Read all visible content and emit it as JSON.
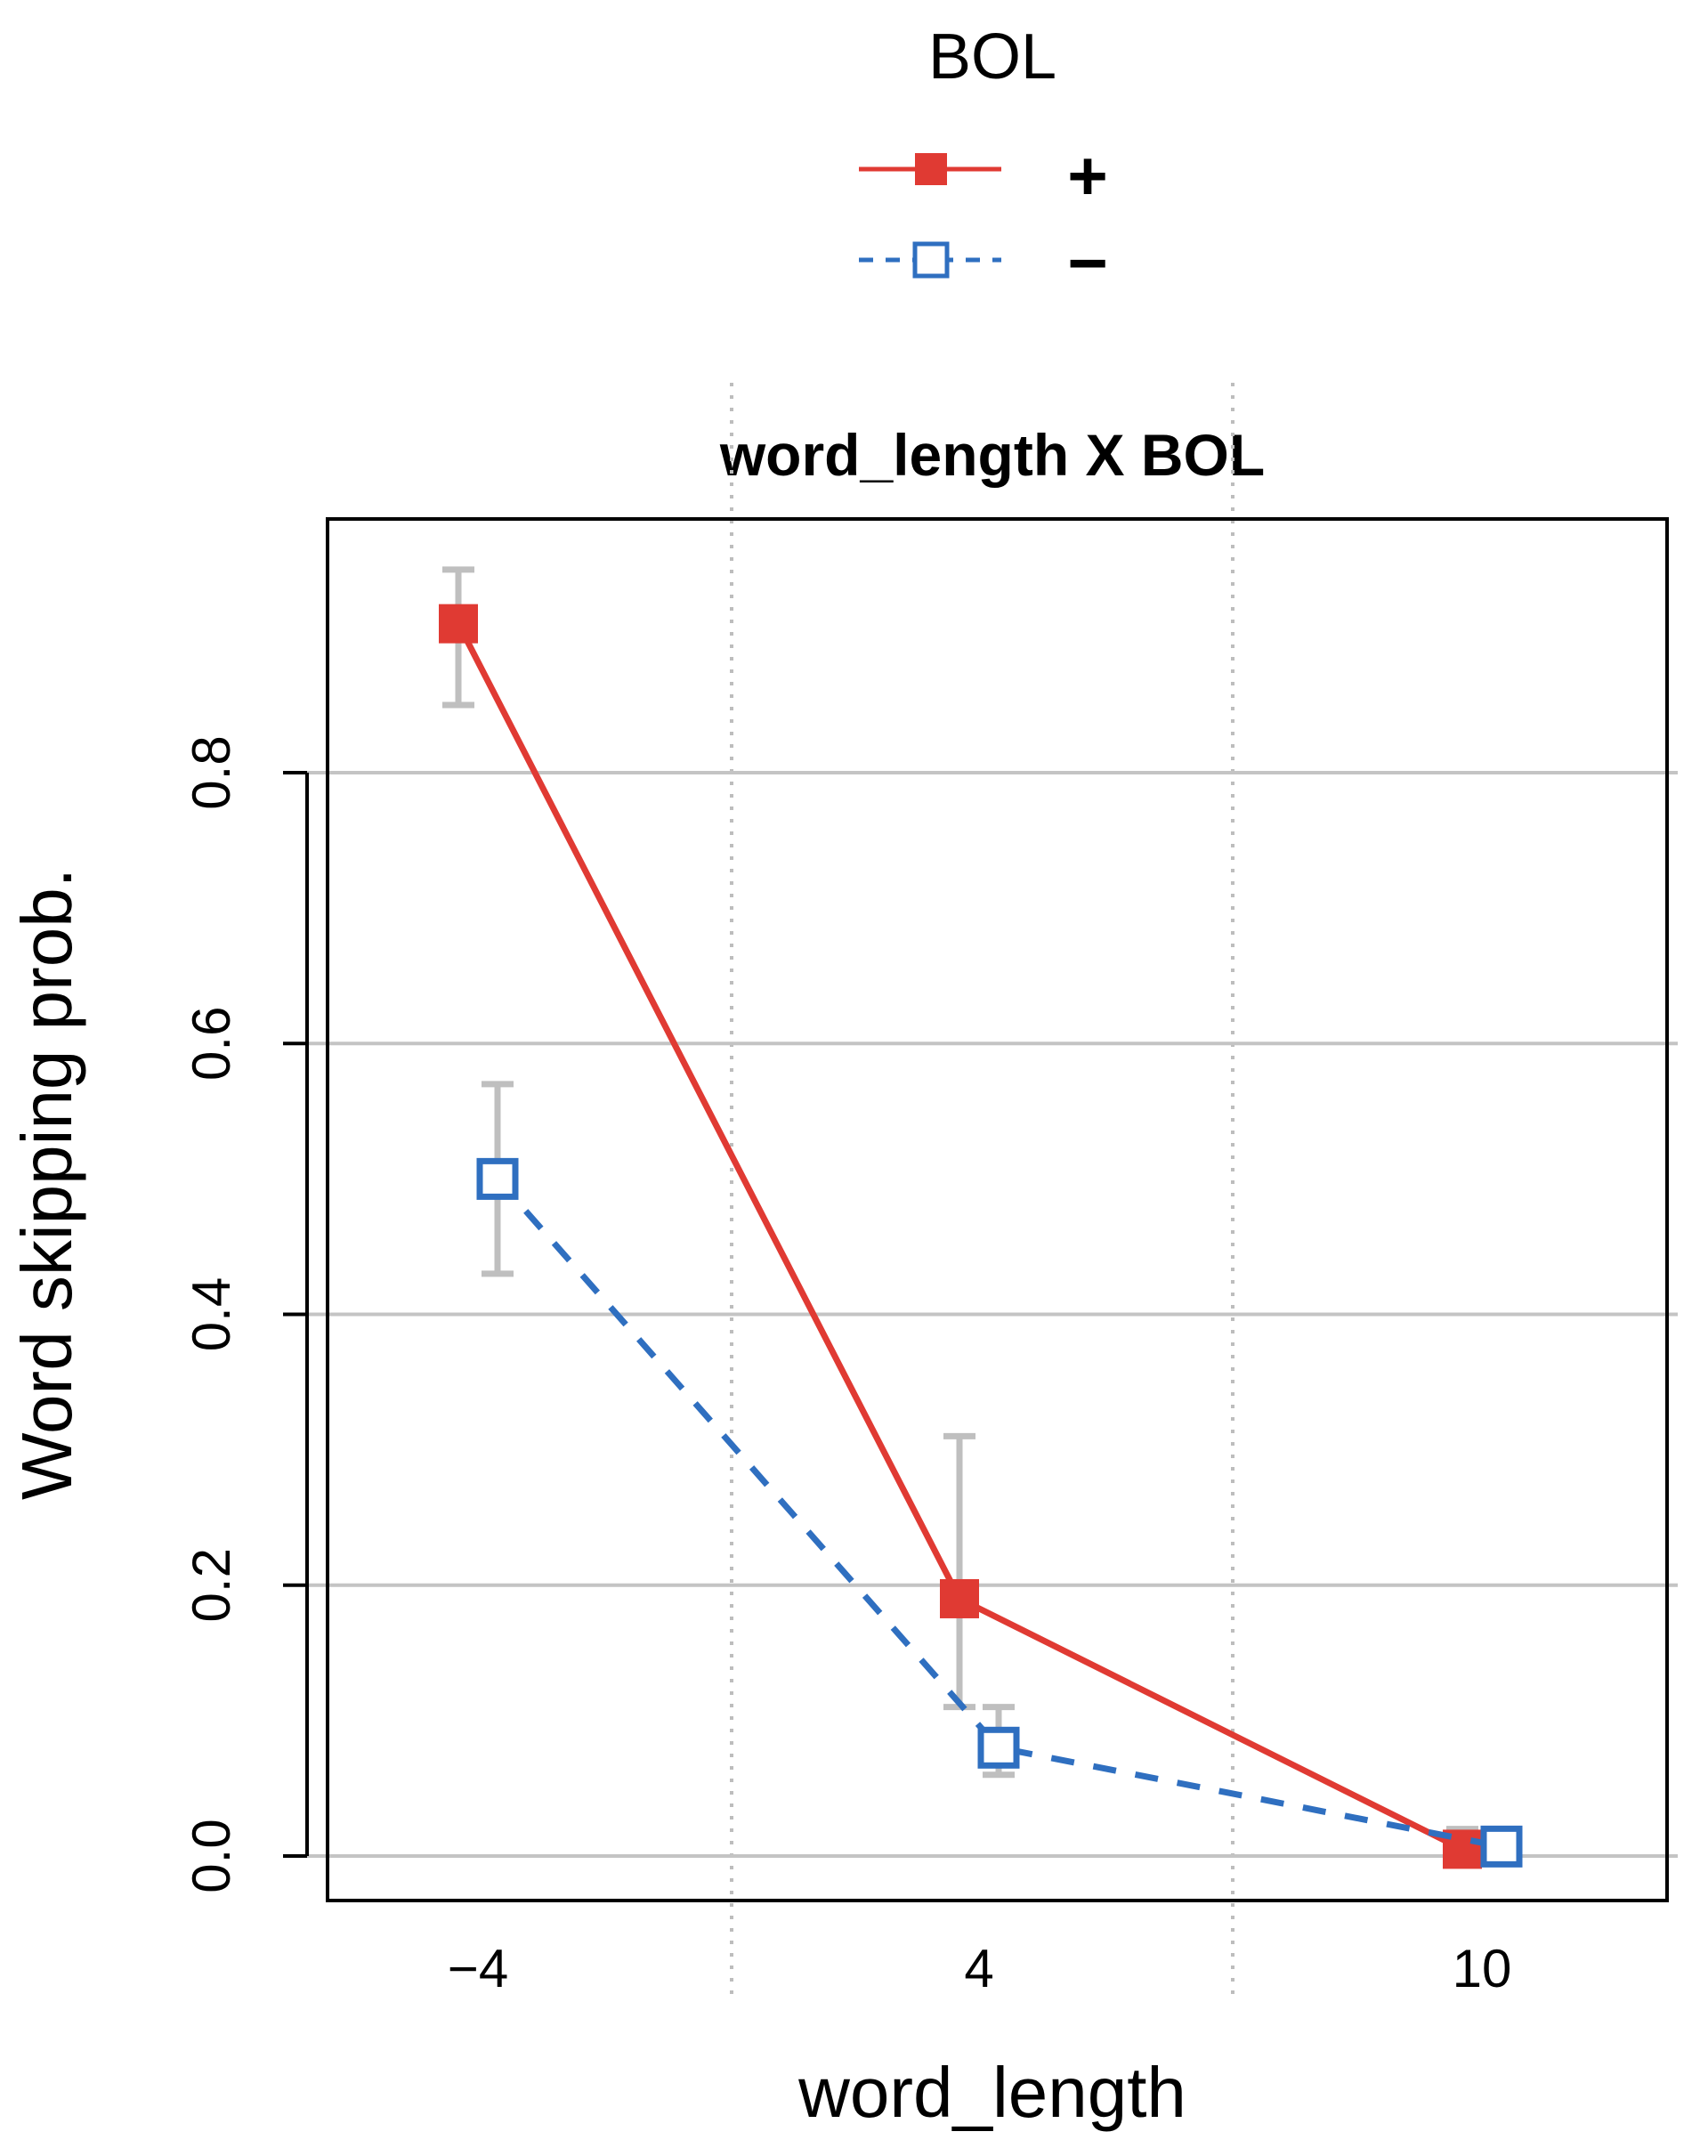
{
  "chart_data": {
    "type": "line",
    "title": "word_length X BOL",
    "xlabel": "word_length",
    "ylabel": "Word skipping prob.",
    "legend": {
      "title": "BOL",
      "placement": "top-center"
    },
    "categories": [
      "−4",
      "4",
      "10"
    ],
    "yticks": [
      "0.0",
      "0.2",
      "0.4",
      "0.6",
      "0.8"
    ],
    "ylim": [
      -0.04,
      0.99
    ],
    "grid": true,
    "series": [
      {
        "name": "+",
        "color": "#e03a33",
        "line_style": "solid",
        "marker": "filled-square",
        "values": [
          0.91,
          0.19,
          0.005
        ],
        "ci_low": [
          0.85,
          0.11,
          0.0
        ],
        "ci_high": [
          0.95,
          0.31,
          0.02
        ]
      },
      {
        "name": "−",
        "color": "#2f6fc0",
        "line_style": "dashed",
        "marker": "open-square",
        "values": [
          0.5,
          0.08,
          0.007
        ],
        "ci_low": [
          0.43,
          0.06,
          0.0
        ],
        "ci_high": [
          0.57,
          0.11,
          0.02
        ]
      }
    ]
  }
}
